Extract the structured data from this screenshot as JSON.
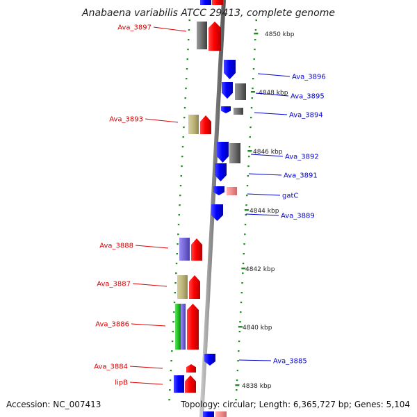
{
  "title": "Anabaena variabilis ATCC 29413, complete genome",
  "footer": {
    "accession": "Accession: NC_007413",
    "summary": "Topology: circular; Length: 6,365,727 bp; Genes: 5,104"
  },
  "colors": {
    "backbone": "#8a8a8a",
    "left_label": "#dd0000",
    "right_label": "#0000cc",
    "tick_mark": "#1f8a1f"
  },
  "scale": {
    "ticks": [
      {
        "label": "4850 kbp"
      },
      {
        "label": "4848 kbp"
      },
      {
        "label": "4846 kbp"
      },
      {
        "label": "4844 kbp"
      },
      {
        "label": "4842 kbp"
      },
      {
        "label": "4840 kbp"
      },
      {
        "label": "4838 kbp"
      }
    ]
  },
  "genes_left": [
    {
      "label": "Ava_3897"
    },
    {
      "label": "Ava_3893"
    },
    {
      "label": "Ava_3888"
    },
    {
      "label": "Ava_3887"
    },
    {
      "label": "Ava_3886"
    },
    {
      "label": "Ava_3884"
    },
    {
      "label": "lipB"
    }
  ],
  "genes_right": [
    {
      "label": "Ava_3896"
    },
    {
      "label": "Ava_3895"
    },
    {
      "label": "Ava_3894"
    },
    {
      "label": "Ava_3892"
    },
    {
      "label": "Ava_3891"
    },
    {
      "label": "gatC"
    },
    {
      "label": "Ava_3889"
    },
    {
      "label": "Ava_3885"
    }
  ]
}
